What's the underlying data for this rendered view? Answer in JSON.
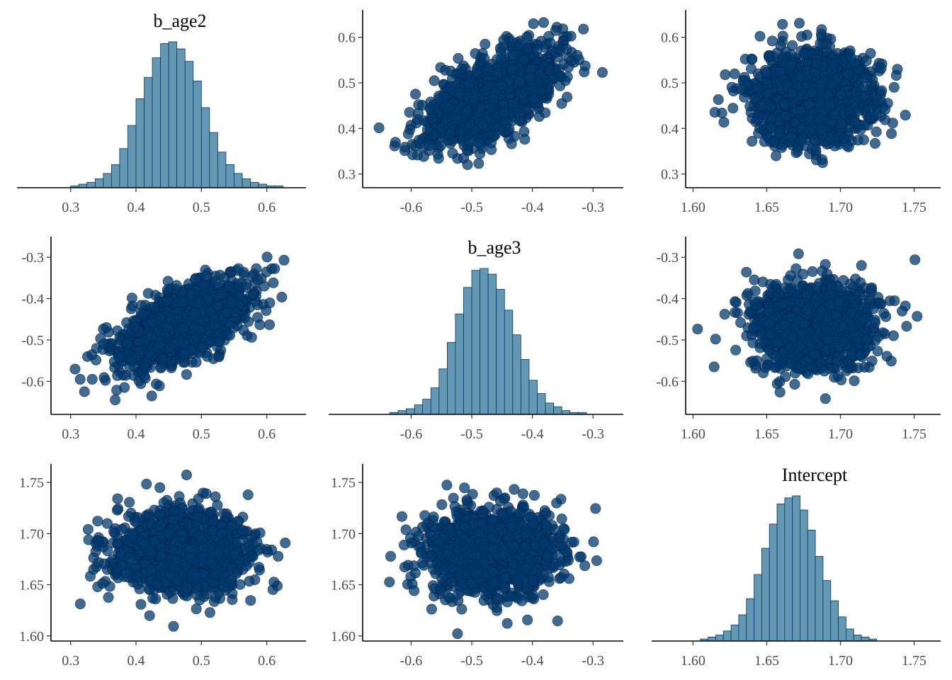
{
  "chart_data": {
    "type": "scatter",
    "layout": "pairs-matrix",
    "variables": [
      "b_age2",
      "b_age3",
      "Intercept"
    ],
    "colors": {
      "hist_fill": "#6497b1",
      "hist_stroke": "#03396c",
      "point_fill": "#03396c",
      "point_stroke": "#011f4b"
    },
    "axes": {
      "b_age2": {
        "lim": [
          0.27,
          0.66
        ],
        "ticks": [
          "0.3",
          "0.4",
          "0.5",
          "0.6"
        ]
      },
      "b_age3": {
        "lim": [
          -0.68,
          -0.25
        ],
        "ticks": [
          "-0.6",
          "-0.5",
          "-0.4",
          "-0.3"
        ]
      },
      "Intercept": {
        "lim": [
          1.595,
          1.768
        ],
        "ticks": [
          "1.60",
          "1.65",
          "1.70",
          "1.75"
        ]
      }
    },
    "posteriors": {
      "b_age2": {
        "mean": 0.47,
        "sd": 0.05,
        "range": [
          0.305,
          0.65
        ]
      },
      "b_age3": {
        "mean": -0.465,
        "sd": 0.052,
        "range": [
          -0.655,
          -0.265
        ]
      },
      "Intercept": {
        "mean": 1.682,
        "sd": 0.02,
        "range": [
          1.6,
          1.765
        ]
      }
    },
    "correlations": {
      "b_age2|b_age3": 0.6,
      "b_age2|Intercept": 0.0,
      "b_age3|Intercept": 0.0
    },
    "panels": [
      {
        "row": 0,
        "col": 0,
        "kind": "histogram",
        "var": "b_age2",
        "title": "b_age2",
        "bin_start": 0.3,
        "bin_width": 0.0125,
        "counts": [
          1,
          2,
          3,
          5,
          8,
          13,
          22,
          35,
          50,
          62,
          73,
          81,
          82,
          78,
          71,
          60,
          45,
          31,
          20,
          13,
          8,
          5,
          3,
          2,
          1,
          1,
          0,
          0
        ]
      },
      {
        "row": 0,
        "col": 1,
        "kind": "scatter",
        "x": "b_age3",
        "y": "b_age2"
      },
      {
        "row": 0,
        "col": 2,
        "kind": "scatter",
        "x": "Intercept",
        "y": "b_age2"
      },
      {
        "row": 1,
        "col": 0,
        "kind": "scatter",
        "x": "b_age2",
        "y": "b_age3"
      },
      {
        "row": 1,
        "col": 1,
        "kind": "histogram",
        "var": "b_age3",
        "title": "b_age3",
        "bin_start": -0.635,
        "bin_width": 0.0135,
        "counts": [
          1,
          2,
          3,
          5,
          8,
          14,
          24,
          38,
          53,
          67,
          76,
          77,
          74,
          66,
          55,
          42,
          29,
          18,
          11,
          6,
          4,
          2,
          1,
          1,
          0,
          0,
          0,
          0
        ]
      },
      {
        "row": 1,
        "col": 2,
        "kind": "scatter",
        "x": "Intercept",
        "y": "b_age3"
      },
      {
        "row": 2,
        "col": 0,
        "kind": "scatter",
        "x": "b_age2",
        "y": "Intercept"
      },
      {
        "row": 2,
        "col": 1,
        "kind": "scatter",
        "x": "b_age3",
        "y": "Intercept"
      },
      {
        "row": 2,
        "col": 2,
        "kind": "histogram",
        "var": "Intercept",
        "title": "Intercept",
        "bin_start": 1.605,
        "bin_width": 0.0052,
        "counts": [
          1,
          2,
          3,
          5,
          8,
          13,
          21,
          33,
          46,
          58,
          68,
          71,
          72,
          65,
          55,
          42,
          30,
          20,
          12,
          6,
          3,
          2,
          1,
          0,
          0,
          0,
          0,
          0
        ]
      }
    ]
  }
}
